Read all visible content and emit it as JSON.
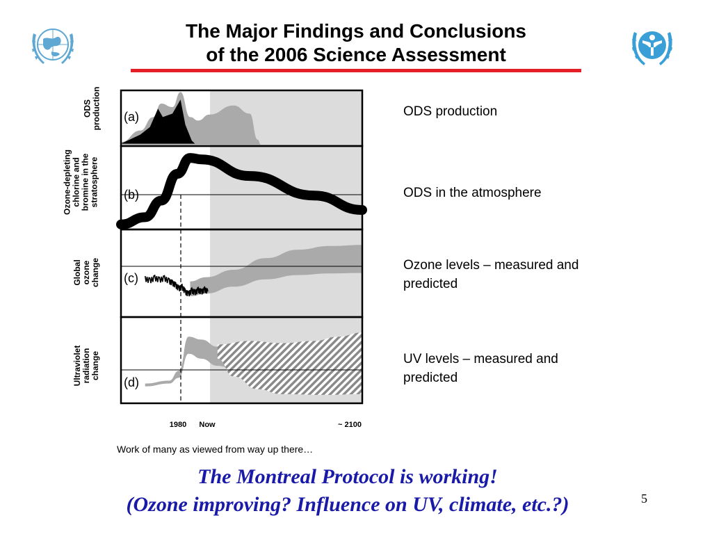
{
  "slide": {
    "title_line1": "The Major Findings and Conclusions",
    "title_line2": "of the 2006 Science Assessment",
    "accent_color": "#e31e24",
    "conclusion_color": "#1a1aa8",
    "conclusion_line1": "The Montreal Protocol is working!",
    "conclusion_line2": "(Ozone improving? Influence on UV, climate, etc.?)",
    "caption": "Work of many as viewed from way up there…",
    "page_number": "5",
    "logos": [
      "wmo-globe-wreath-logo",
      "unep-wreath-logo"
    ]
  },
  "chart_data": {
    "type": "area",
    "x_ticks": [
      "1980",
      "Now",
      "~ 2100"
    ],
    "panels": [
      {
        "letter": "(a)",
        "ylabel": "ODS production",
        "right_label": "ODS production",
        "series": [
          {
            "role": "measured",
            "color": "#000000",
            "points": [
              [
                1950,
                0.02
              ],
              [
                1962,
                0.2
              ],
              [
                1968,
                0.35
              ],
              [
                1973,
                0.72
              ],
              [
                1976,
                0.55
              ],
              [
                1982,
                0.62
              ],
              [
                1987,
                0.9
              ],
              [
                1990,
                0.4
              ],
              [
                1994,
                0.08
              ],
              [
                1996,
                0.02
              ]
            ]
          },
          {
            "role": "envelope",
            "color": "#aaaaaa",
            "upper": [
              [
                1950,
                0.05
              ],
              [
                1962,
                0.28
              ],
              [
                1970,
                0.55
              ],
              [
                1975,
                0.82
              ],
              [
                1982,
                0.75
              ],
              [
                1987,
                1.05
              ],
              [
                1993,
                0.55
              ],
              [
                1998,
                0.48
              ],
              [
                2005,
                0.6
              ],
              [
                2020,
                0.78
              ],
              [
                2030,
                0.62
              ],
              [
                2035,
                0.1
              ],
              [
                2037,
                0.0
              ]
            ],
            "lower": [
              [
                1950,
                0.0
              ],
              [
                1996,
                0.0
              ],
              [
                2037,
                0.0
              ]
            ]
          }
        ]
      },
      {
        "letter": "(b)",
        "ylabel": "Ozone-depleting chlorine and bromine in the stratosphere",
        "right_label": "ODS in the atmosphere",
        "series": [
          {
            "role": "band",
            "color": "#000000",
            "points": [
              [
                1950,
                0.05
              ],
              [
                1965,
                0.15
              ],
              [
                1975,
                0.38
              ],
              [
                1985,
                0.75
              ],
              [
                1993,
                0.97
              ],
              [
                2000,
                0.95
              ],
              [
                2030,
                0.72
              ],
              [
                2070,
                0.45
              ],
              [
                2100,
                0.25
              ]
            ]
          }
        ]
      },
      {
        "letter": "(c)",
        "ylabel": "Global ozone change",
        "right_label": "Ozone levels – measured and predicted",
        "series": [
          {
            "role": "measured",
            "color": "#000000",
            "points": [
              [
                1965,
                0.48
              ],
              [
                1968,
                0.42
              ],
              [
                1971,
                0.5
              ],
              [
                1974,
                0.44
              ],
              [
                1977,
                0.49
              ],
              [
                1980,
                0.4
              ],
              [
                1982,
                0.35
              ],
              [
                1984,
                0.28
              ],
              [
                1986,
                0.18
              ],
              [
                1988,
                0.23
              ],
              [
                1990,
                0.08
              ],
              [
                1992,
                0.02
              ],
              [
                1994,
                0.12
              ],
              [
                1996,
                0.06
              ],
              [
                1998,
                0.14
              ],
              [
                2000,
                0.08
              ],
              [
                2002,
                0.15
              ],
              [
                2004,
                0.1
              ]
            ]
          },
          {
            "role": "envelope",
            "color": "#aaaaaa",
            "upper": [
              [
                1993,
                0.28
              ],
              [
                2003,
                0.36
              ],
              [
                2020,
                0.5
              ],
              [
                2040,
                0.72
              ],
              [
                2060,
                0.88
              ],
              [
                2080,
                0.95
              ],
              [
                2100,
                0.97
              ]
            ],
            "lower": [
              [
                1993,
                0.0
              ],
              [
                2003,
                0.05
              ],
              [
                2020,
                0.18
              ],
              [
                2040,
                0.32
              ],
              [
                2060,
                0.4
              ],
              [
                2080,
                0.43
              ],
              [
                2100,
                0.44
              ]
            ]
          }
        ]
      },
      {
        "letter": "(d)",
        "ylabel": "Ultraviolet radiation change",
        "right_label": "UV levels – measured and predicted",
        "series": [
          {
            "role": "measured",
            "color": "#aaaaaa",
            "upper": [
              [
                1965,
                0.2
              ],
              [
                1980,
                0.24
              ],
              [
                1986,
                0.38
              ],
              [
                1992,
                0.86
              ],
              [
                2000,
                0.82
              ],
              [
                2010,
                0.72
              ],
              [
                2025,
                0.55
              ],
              [
                2040,
                0.4
              ],
              [
                2060,
                0.3
              ],
              [
                2080,
                0.28
              ],
              [
                2100,
                0.27
              ]
            ],
            "lower": [
              [
                1965,
                0.16
              ],
              [
                1980,
                0.2
              ],
              [
                1986,
                0.28
              ],
              [
                1992,
                0.62
              ],
              [
                2000,
                0.55
              ],
              [
                2010,
                0.45
              ],
              [
                2025,
                0.35
              ],
              [
                2040,
                0.28
              ],
              [
                2060,
                0.22
              ],
              [
                2080,
                0.18
              ],
              [
                2100,
                0.17
              ]
            ]
          },
          {
            "role": "hatched",
            "color": "#8a8a8a",
            "upper": [
              [
                2010,
                0.75
              ],
              [
                2030,
                0.8
              ],
              [
                2050,
                0.77
              ],
              [
                2070,
                0.8
              ],
              [
                2085,
                0.86
              ],
              [
                2100,
                0.92
              ]
            ],
            "lower": [
              [
                2010,
                0.55
              ],
              [
                2020,
                0.3
              ],
              [
                2035,
                0.12
              ],
              [
                2050,
                0.05
              ],
              [
                2075,
                0.04
              ],
              [
                2100,
                0.05
              ]
            ]
          }
        ]
      }
    ]
  }
}
